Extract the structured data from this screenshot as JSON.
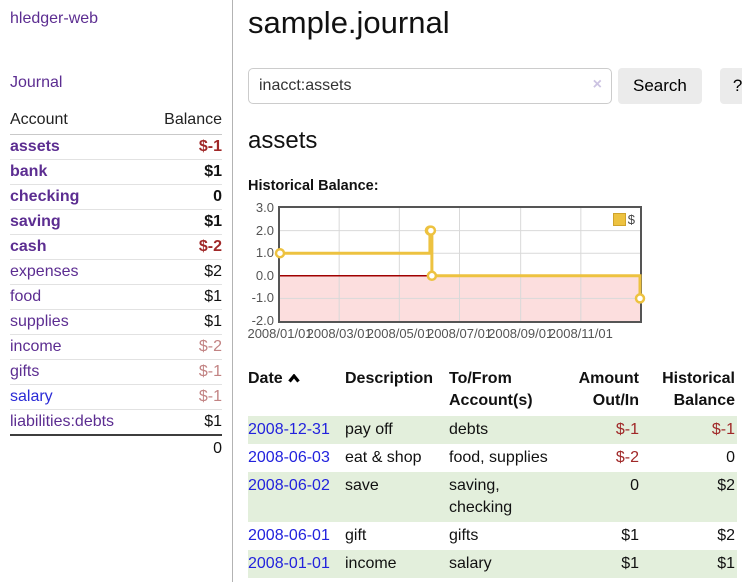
{
  "sidebar": {
    "brand": "hledger-web",
    "nav_journal": "Journal",
    "accounts_table": {
      "headers": [
        "Account",
        "Balance"
      ],
      "rows": [
        {
          "name": "assets",
          "depth": 1,
          "balance": "$-1",
          "bold": true,
          "neg": "strong"
        },
        {
          "name": "bank",
          "depth": 2,
          "balance": "$1",
          "bold": true,
          "neg": "none"
        },
        {
          "name": "checking",
          "depth": 3,
          "balance": "0",
          "bold": true,
          "neg": "none"
        },
        {
          "name": "saving",
          "depth": 3,
          "balance": "$1",
          "bold": true,
          "neg": "none"
        },
        {
          "name": "cash",
          "depth": 2,
          "balance": "$-2",
          "bold": true,
          "neg": "strong"
        },
        {
          "name": "expenses",
          "depth": 1,
          "balance": "$2",
          "bold": false,
          "neg": "none"
        },
        {
          "name": "food",
          "depth": 2,
          "balance": "$1",
          "bold": false,
          "neg": "none"
        },
        {
          "name": "supplies",
          "depth": 2,
          "balance": "$1",
          "bold": false,
          "neg": "none"
        },
        {
          "name": "income",
          "depth": 1,
          "balance": "$-2",
          "bold": false,
          "neg": "soft"
        },
        {
          "name": "gifts",
          "depth": 2,
          "balance": "$-1",
          "bold": false,
          "neg": "soft"
        },
        {
          "name": "salary",
          "depth": 2,
          "balance": "$-1",
          "bold": false,
          "neg": "soft",
          "unvisited": true
        },
        {
          "name": "liabilities:debts",
          "depth": 1,
          "balance": "$1",
          "bold": false,
          "neg": "none"
        }
      ],
      "total": "0"
    }
  },
  "header": {
    "title": "sample.journal"
  },
  "search": {
    "value": "inacct:assets",
    "clear_icon": "×",
    "button_label": "Search",
    "help_label": "?"
  },
  "account_page": {
    "title": "assets",
    "chart_label": "Historical Balance:"
  },
  "chart_data": {
    "type": "line",
    "step": true,
    "title": "Historical Balance:",
    "series": [
      {
        "name": "$",
        "x": [
          "2008-01-01",
          "2008-06-01",
          "2008-06-02",
          "2008-06-03",
          "2008-12-31"
        ],
        "y": [
          1,
          2,
          2,
          0,
          -1
        ]
      }
    ],
    "xlim": [
      "2008-01-01",
      "2008-12-31"
    ],
    "ylim": [
      -2,
      3
    ],
    "x_ticks": [
      {
        "label": "2008/01/01",
        "date": "2008-01-01"
      },
      {
        "label": "2008/03/01",
        "date": "2008-03-01"
      },
      {
        "label": "2008/05/01",
        "date": "2008-05-01"
      },
      {
        "label": "2008/07/01",
        "date": "2008-07-01"
      },
      {
        "label": "2008/09/01",
        "date": "2008-09-01"
      },
      {
        "label": "2008/11/01",
        "date": "2008-11-01"
      }
    ],
    "y_ticks": [
      {
        "label": "3.0",
        "value": 3
      },
      {
        "label": "2.0",
        "value": 2
      },
      {
        "label": "1.0",
        "value": 1
      },
      {
        "label": "0.0",
        "value": 0
      },
      {
        "label": "-1.0",
        "value": -1
      },
      {
        "label": "-2.0",
        "value": -2
      }
    ],
    "legend": {
      "position": "top-right",
      "entries": [
        "$"
      ]
    },
    "grid": true,
    "line_color": "#edc240",
    "negative_region_fill": "#fcdede",
    "zero_line_color": "#a00000"
  },
  "register_table": {
    "headers": [
      "Date",
      "Description",
      "To/From Account(s)",
      "Amount Out/In",
      "Historical Balance"
    ],
    "rows": [
      {
        "date": "2008-12-31",
        "description": "pay off",
        "accounts": "debts",
        "amount": "$-1",
        "amount_negative": true,
        "balance": "$-1",
        "balance_negative": true
      },
      {
        "date": "2008-06-03",
        "description": "eat & shop",
        "accounts": "food, supplies",
        "amount": "$-2",
        "amount_negative": true,
        "balance": "0",
        "balance_negative": false
      },
      {
        "date": "2008-06-02",
        "description": "save",
        "accounts": "saving, checking",
        "amount": "0",
        "amount_negative": false,
        "balance": "$2",
        "balance_negative": false
      },
      {
        "date": "2008-06-01",
        "description": "gift",
        "accounts": "gifts",
        "amount": "$1",
        "amount_negative": false,
        "balance": "$2",
        "balance_negative": false
      },
      {
        "date": "2008-01-01",
        "description": "income",
        "accounts": "salary",
        "amount": "$1",
        "amount_negative": false,
        "balance": "$1",
        "balance_negative": false
      }
    ]
  },
  "colors": {
    "link_purple": "#5c2d91",
    "link_blue": "#2222dd",
    "negative_strong": "#a02828",
    "negative_soft": "#c28383",
    "row_stripe_green": "#e3efdc",
    "chart_line_gold": "#edc240",
    "chart_negative_fill": "#fcdede",
    "chart_zero_line": "#a00000",
    "button_gray": "#ebebeb"
  }
}
